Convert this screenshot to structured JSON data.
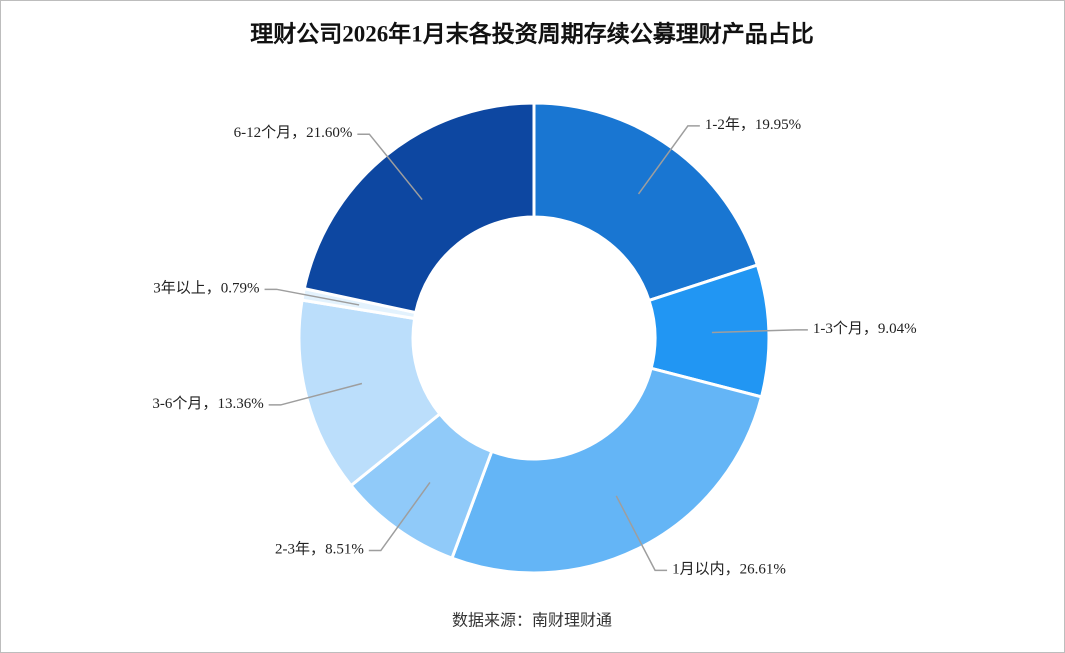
{
  "chart_data": {
    "type": "donut",
    "title": "理财公司2026年1月末各投资周期存续公募理财产品占比",
    "source": "数据来源：南财理财通",
    "categories": [
      "1-2年",
      "1-3个月",
      "1月以内",
      "2-3年",
      "3-6个月",
      "3年以上",
      "6-12个月"
    ],
    "values": [
      19.95,
      9.04,
      26.61,
      8.51,
      13.36,
      0.79,
      21.6
    ],
    "value_labels": [
      "19.95%",
      "9.04%",
      "26.61%",
      "8.51%",
      "13.36%",
      "0.79%",
      "21.60%"
    ],
    "label_separator": "，",
    "colors": [
      "#1976d2",
      "#2196f3",
      "#64b5f6",
      "#90caf9",
      "#bbdefb",
      "#e3f2fd",
      "#0d47a1"
    ]
  }
}
